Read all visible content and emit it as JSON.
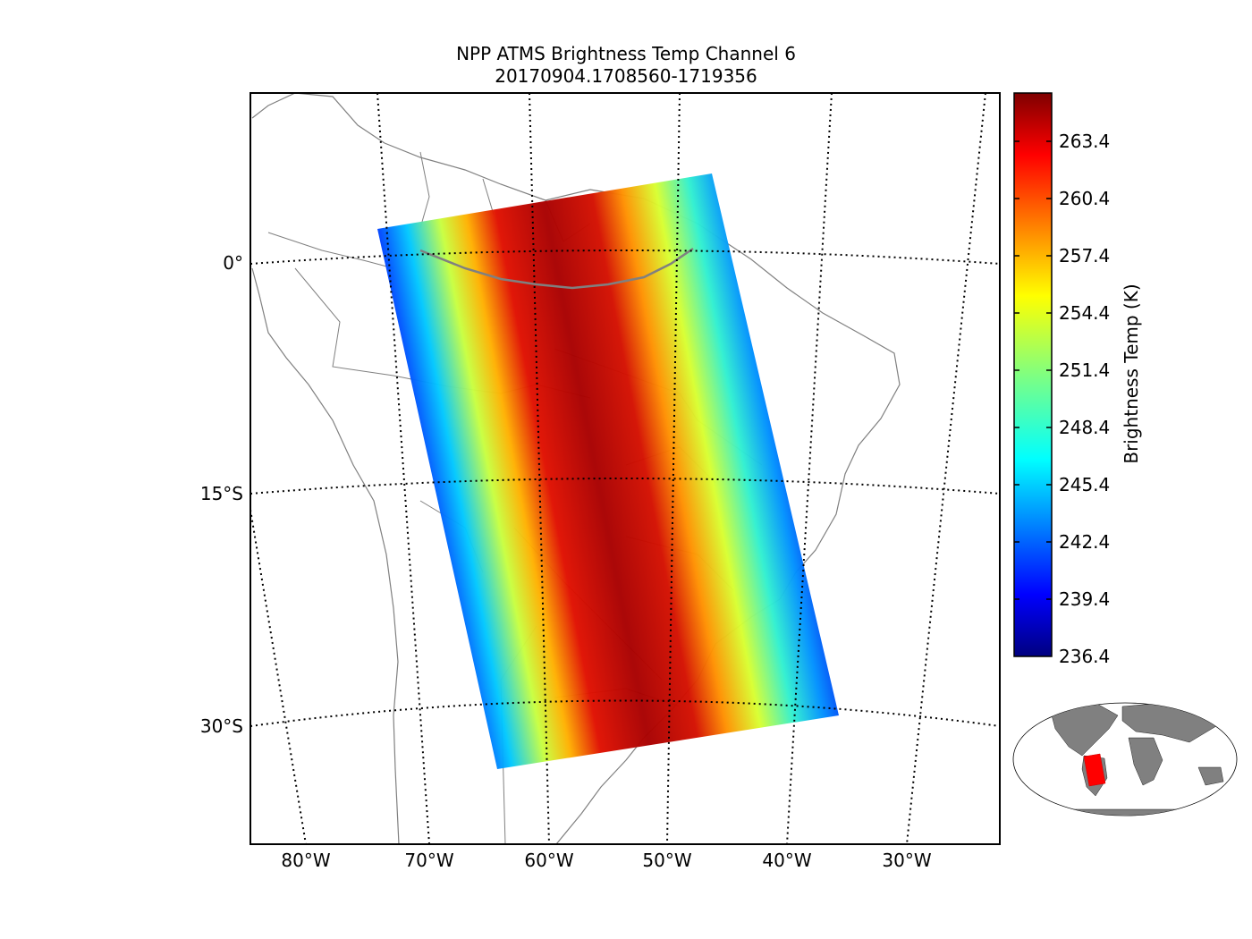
{
  "title": {
    "line1": "NPP ATMS Brightness Temp Channel 6",
    "line2": "20170904.1708560-1719356"
  },
  "map": {
    "lat_labels": [
      "0°",
      "15°S",
      "30°S"
    ],
    "lon_labels": [
      "80°W",
      "70°W",
      "60°W",
      "50°W",
      "40°W",
      "30°W"
    ]
  },
  "colorbar": {
    "label": "Brightness Temp (K)",
    "colormap": "jet",
    "range": [
      236.4,
      266.4
    ],
    "ticks": [
      "263.4",
      "260.4",
      "257.4",
      "254.4",
      "251.4",
      "248.4",
      "245.4",
      "242.4",
      "239.4",
      "236.4"
    ]
  },
  "colors": {
    "coastline": "#808080",
    "graticule": "#000000",
    "inset_land": "#808080",
    "inset_swath": "#ff0000"
  }
}
